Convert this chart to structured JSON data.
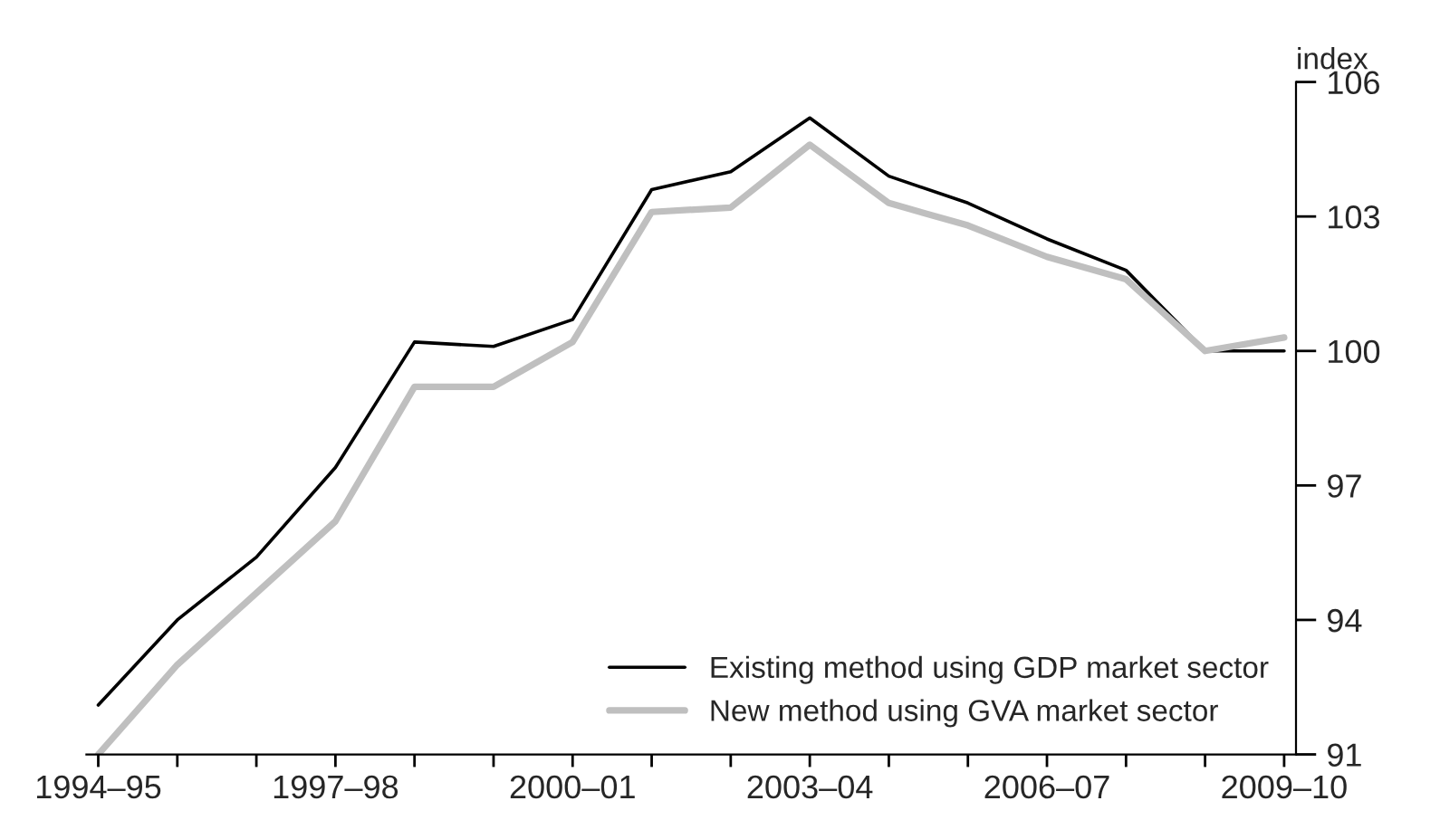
{
  "chart_data": {
    "type": "line",
    "ylabel": "index",
    "categories": [
      "1994–95",
      null,
      null,
      "1997–98",
      null,
      null,
      "2000–01",
      null,
      null,
      "2003–04",
      null,
      null,
      "2006–07",
      null,
      null,
      "2009–10"
    ],
    "series": [
      {
        "name": "Existing method using GDP market sector",
        "color": "#000000",
        "values": [
          92.1,
          94.0,
          95.4,
          97.4,
          100.2,
          100.1,
          100.7,
          103.6,
          104.0,
          105.2,
          103.9,
          103.3,
          102.5,
          101.8,
          100.0,
          100.0
        ]
      },
      {
        "name": "New method using GVA market sector",
        "color": "#bfbfbf",
        "values": [
          91.0,
          93.0,
          94.6,
          96.2,
          99.2,
          99.2,
          100.2,
          103.1,
          103.2,
          104.6,
          103.3,
          102.8,
          102.1,
          101.6,
          100.0,
          100.3
        ]
      }
    ],
    "ylim": [
      91,
      106
    ],
    "yticks": [
      91,
      94,
      97,
      100,
      103,
      106
    ],
    "grid": false,
    "legend": "bottom right"
  }
}
